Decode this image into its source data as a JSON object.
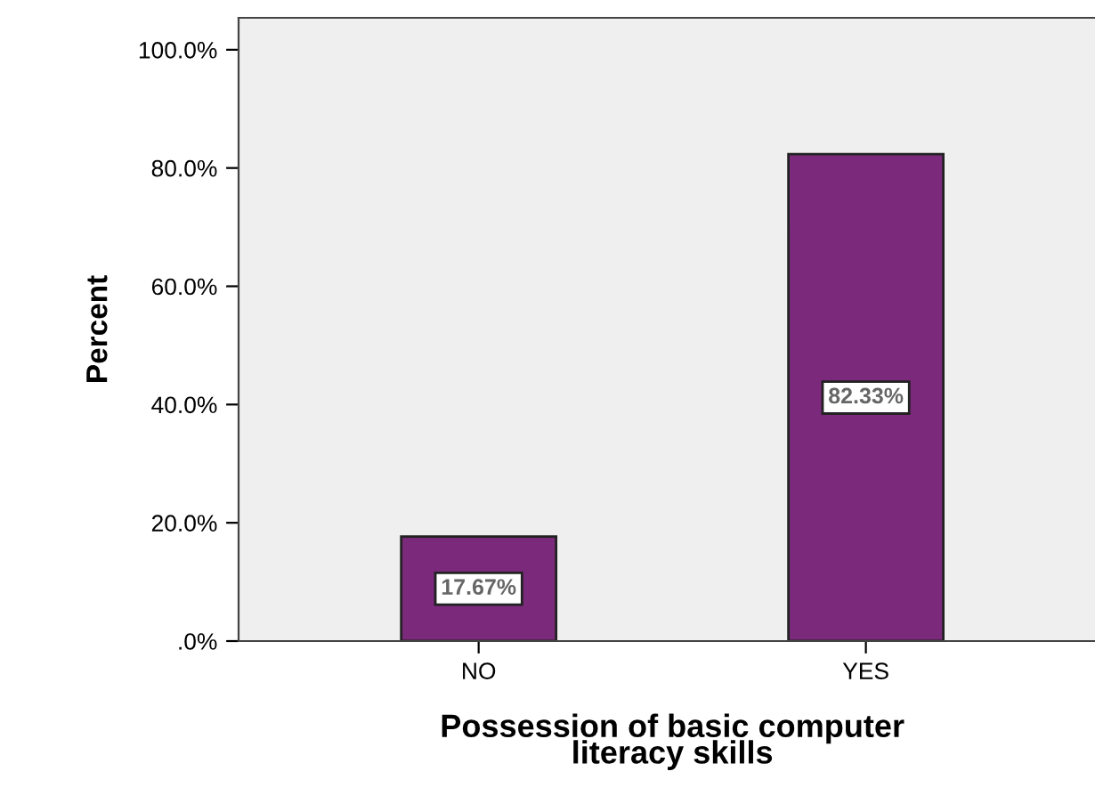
{
  "chart_data": {
    "type": "bar",
    "xlabel": "Possession of basic computer\nliteracy skills",
    "ylabel": "Percent",
    "categories": [
      "NO",
      "YES"
    ],
    "values": [
      17.67,
      82.33
    ],
    "color": "#7b2a7b",
    "value_labels": [
      "17.67%",
      "82.33%"
    ],
    "ylim": [
      0,
      105.4
    ],
    "yticks": [
      {
        "value": 0,
        "label": ".0%"
      },
      {
        "value": 20,
        "label": "20.0%"
      },
      {
        "value": 40,
        "label": "40.0%"
      },
      {
        "value": 60,
        "label": "60.0%"
      },
      {
        "value": 80,
        "label": "80.0%"
      },
      {
        "value": 100,
        "label": "100.0%"
      }
    ],
    "grid": false,
    "legend": false
  }
}
